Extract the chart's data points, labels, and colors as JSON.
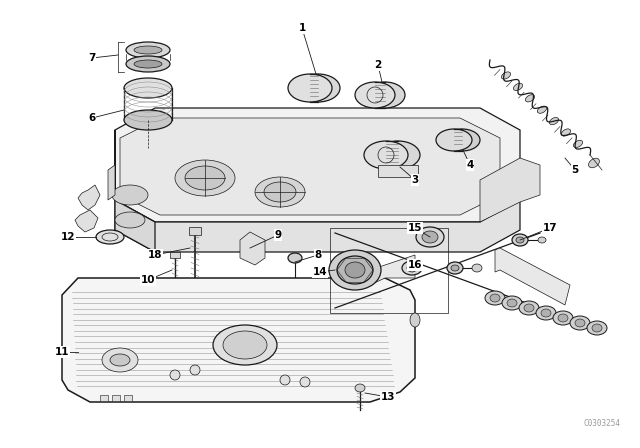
{
  "background_color": "#ffffff",
  "diagram_color": "#000000",
  "watermark": "C0303254",
  "watermark_color": "#999999",
  "fig_width": 6.4,
  "fig_height": 4.48,
  "dpi": 100
}
